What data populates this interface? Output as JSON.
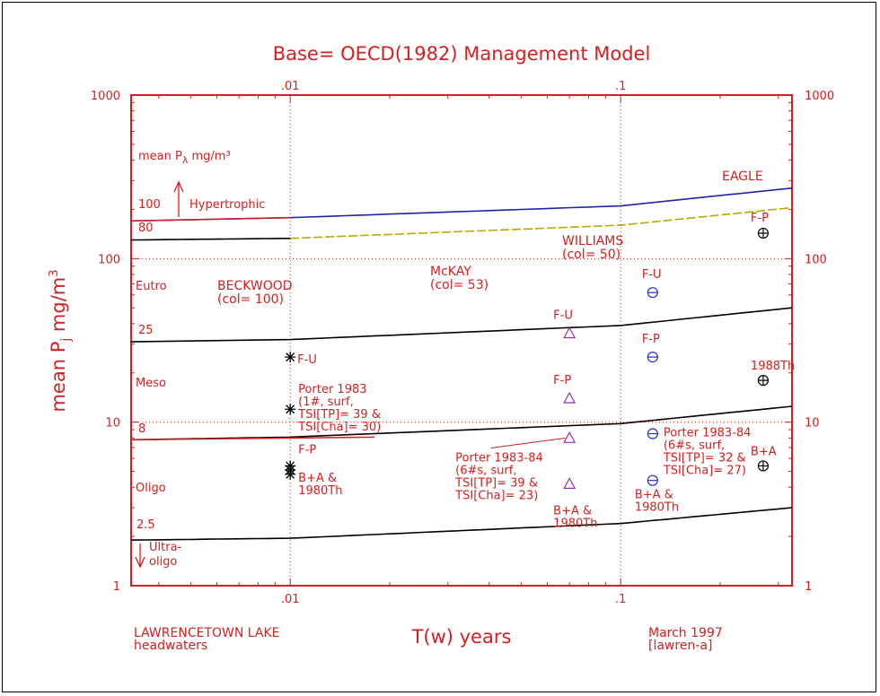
{
  "chart_data": {
    "type": "scatter",
    "title": "Base= OECD(1982) Management Model",
    "xlabel": "T(w) years",
    "ylabel": "mean P_j mg/m^3",
    "x_scale": "log",
    "y_scale": "log",
    "xlim": [
      0.0033,
      0.33
    ],
    "ylim": [
      1,
      1000
    ],
    "top_tick_labels": [
      ".01",
      ".1"
    ],
    "bottom_tick_labels": [
      ".01",
      ".1"
    ],
    "left_tick_labels": [
      "1000",
      "100",
      "10",
      "1"
    ],
    "right_tick_labels": [
      "1000",
      "100",
      "10",
      "1"
    ],
    "grid": true,
    "footer_left": [
      "LAWRENCETOWN LAKE",
      "headwaters"
    ],
    "footer_right": [
      "March 1997",
      "[lawren-a]"
    ],
    "inlet_label": "mean P",
    "inlet_sub": "λ",
    "inlet_unit": "mg/m³",
    "trophic_levels": [
      {
        "label": "Hypertrophic",
        "value_label": "100"
      },
      {
        "label": "80"
      },
      {
        "label": "Eutro"
      },
      {
        "label": "25"
      },
      {
        "label": "Meso"
      },
      {
        "label": "8"
      },
      {
        "label": "Oligo"
      },
      {
        "label": "2.5"
      },
      {
        "label": "Ultra-",
        "label2": "oligo"
      }
    ],
    "curves": [
      {
        "name": "EAGLE",
        "x": [
          0.0033,
          0.01,
          0.1,
          0.33
        ],
        "y": [
          170,
          178,
          210,
          270
        ],
        "color": "#2222aa"
      },
      {
        "name": "",
        "x": [
          0.01,
          0.1,
          0.33
        ],
        "y": [
          133,
          160,
          205
        ],
        "color": "#b8a800",
        "dashed": true
      },
      {
        "name": "",
        "x": [
          0.0033,
          0.01
        ],
        "y": [
          130,
          133
        ],
        "color": "#000000"
      },
      {
        "name": "",
        "x": [
          0.0033,
          0.01,
          0.1,
          0.33
        ],
        "y": [
          31,
          32,
          39,
          50
        ],
        "color": "#000000"
      },
      {
        "name": "",
        "x": [
          0.0033,
          0.01,
          0.1,
          0.33
        ],
        "y": [
          7.8,
          8.1,
          9.8,
          12.5
        ],
        "color": "#000000"
      },
      {
        "name": "",
        "x": [
          0.0033,
          0.01,
          0.1,
          0.33
        ],
        "y": [
          1.9,
          1.95,
          2.4,
          3.0
        ],
        "color": "#000000"
      }
    ],
    "site_labels": [
      {
        "lines": [
          "BECKWOOD",
          "(col= 100)"
        ]
      },
      {
        "lines": [
          "McKAY",
          "(col= 53)"
        ]
      },
      {
        "lines": [
          "WILLIAMS",
          "(col= 50)"
        ]
      },
      {
        "lines": [
          "EAGLE"
        ]
      }
    ],
    "series": [
      {
        "name": "BECKWOOD",
        "marker": "asterisk",
        "color": "#000000",
        "points": [
          {
            "x": 0.01,
            "y": 25,
            "label": [
              "F-U"
            ]
          },
          {
            "x": 0.01,
            "y": 12,
            "label": [
              "Porter 1983",
              "(1#, surf,",
              "TSI[TP]= 39 &",
              "TSI[Cha]= 30)"
            ]
          },
          {
            "x": 0.01,
            "y": 5.4,
            "label": [
              "F-P"
            ]
          },
          {
            "x": 0.01,
            "y": 4.8,
            "label": [
              "B+A &",
              "1980Th"
            ]
          }
        ]
      },
      {
        "name": "McKAY",
        "marker": "triangle",
        "color": "#9030b0",
        "points": [
          {
            "x": 0.07,
            "y": 35,
            "label": [
              "F-U"
            ]
          },
          {
            "x": 0.07,
            "y": 14,
            "label": [
              "F-P"
            ]
          },
          {
            "x": 0.07,
            "y": 8,
            "label": [
              "Porter 1983-84",
              "(6#s, surf,",
              "TSI[TP]= 39 &",
              "TSI[Cha]= 23)"
            ]
          },
          {
            "x": 0.07,
            "y": 4.2,
            "label": [
              "B+A &",
              "1980Th"
            ]
          }
        ]
      },
      {
        "name": "WILLIAMS",
        "marker": "circle-minus",
        "color": "#2233cc",
        "points": [
          {
            "x": 0.125,
            "y": 62,
            "label": [
              "F-U"
            ]
          },
          {
            "x": 0.125,
            "y": 25,
            "label": [
              "F-P"
            ]
          },
          {
            "x": 0.125,
            "y": 8.5,
            "label": [
              "Porter 1983-84",
              "(6#s, surf,",
              "TSI[TP]= 32 &",
              "TSI[Cha]= 27)"
            ]
          },
          {
            "x": 0.125,
            "y": 4.4,
            "label": [
              "B+A &",
              "1980Th"
            ]
          }
        ]
      },
      {
        "name": "EAGLE",
        "marker": "circle-plus",
        "color": "#000000",
        "points": [
          {
            "x": 0.27,
            "y": 143,
            "label": [
              "F-P"
            ]
          },
          {
            "x": 0.27,
            "y": 18,
            "label": [
              "1988Th"
            ]
          },
          {
            "x": 0.27,
            "y": 5.4,
            "label": [
              "B+A"
            ]
          }
        ]
      }
    ]
  }
}
